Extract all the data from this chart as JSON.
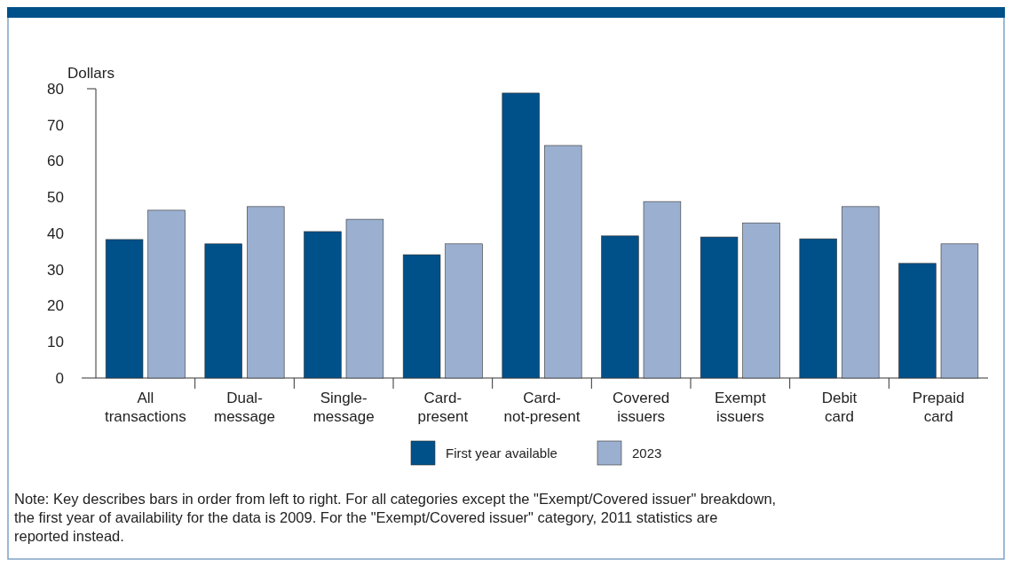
{
  "chart_data": {
    "type": "bar",
    "ylabel": "Dollars",
    "categories": [
      "All transactions",
      "Dual-message",
      "Single-message",
      "Card-present",
      "Card-not-present",
      "Covered issuers",
      "Exempt issuers",
      "Debit card",
      "Prepaid card"
    ],
    "series": [
      {
        "name": "First year available",
        "color": "#00508a",
        "values": [
          38.3,
          37.1,
          40.5,
          34.1,
          78.8,
          39.3,
          39.0,
          38.5,
          31.7
        ]
      },
      {
        "name": "2023",
        "color": "#9bb0d0",
        "values": [
          46.4,
          47.4,
          43.9,
          37.1,
          64.3,
          48.8,
          42.9,
          47.4,
          37.1
        ]
      }
    ],
    "ylim": [
      0,
      80
    ],
    "yticks": [
      0,
      10,
      20,
      30,
      40,
      50,
      60,
      70,
      80
    ],
    "grid": false,
    "legend": "bottom",
    "annotations": [
      "Note: Key describes bars in order from left to right. For all categories except the \"Exempt/Covered issuer\" breakdown, the first year of availability for the data is 2009. For the \"Exempt/Covered issuer\" category, 2011 statistics are reported instead."
    ]
  }
}
